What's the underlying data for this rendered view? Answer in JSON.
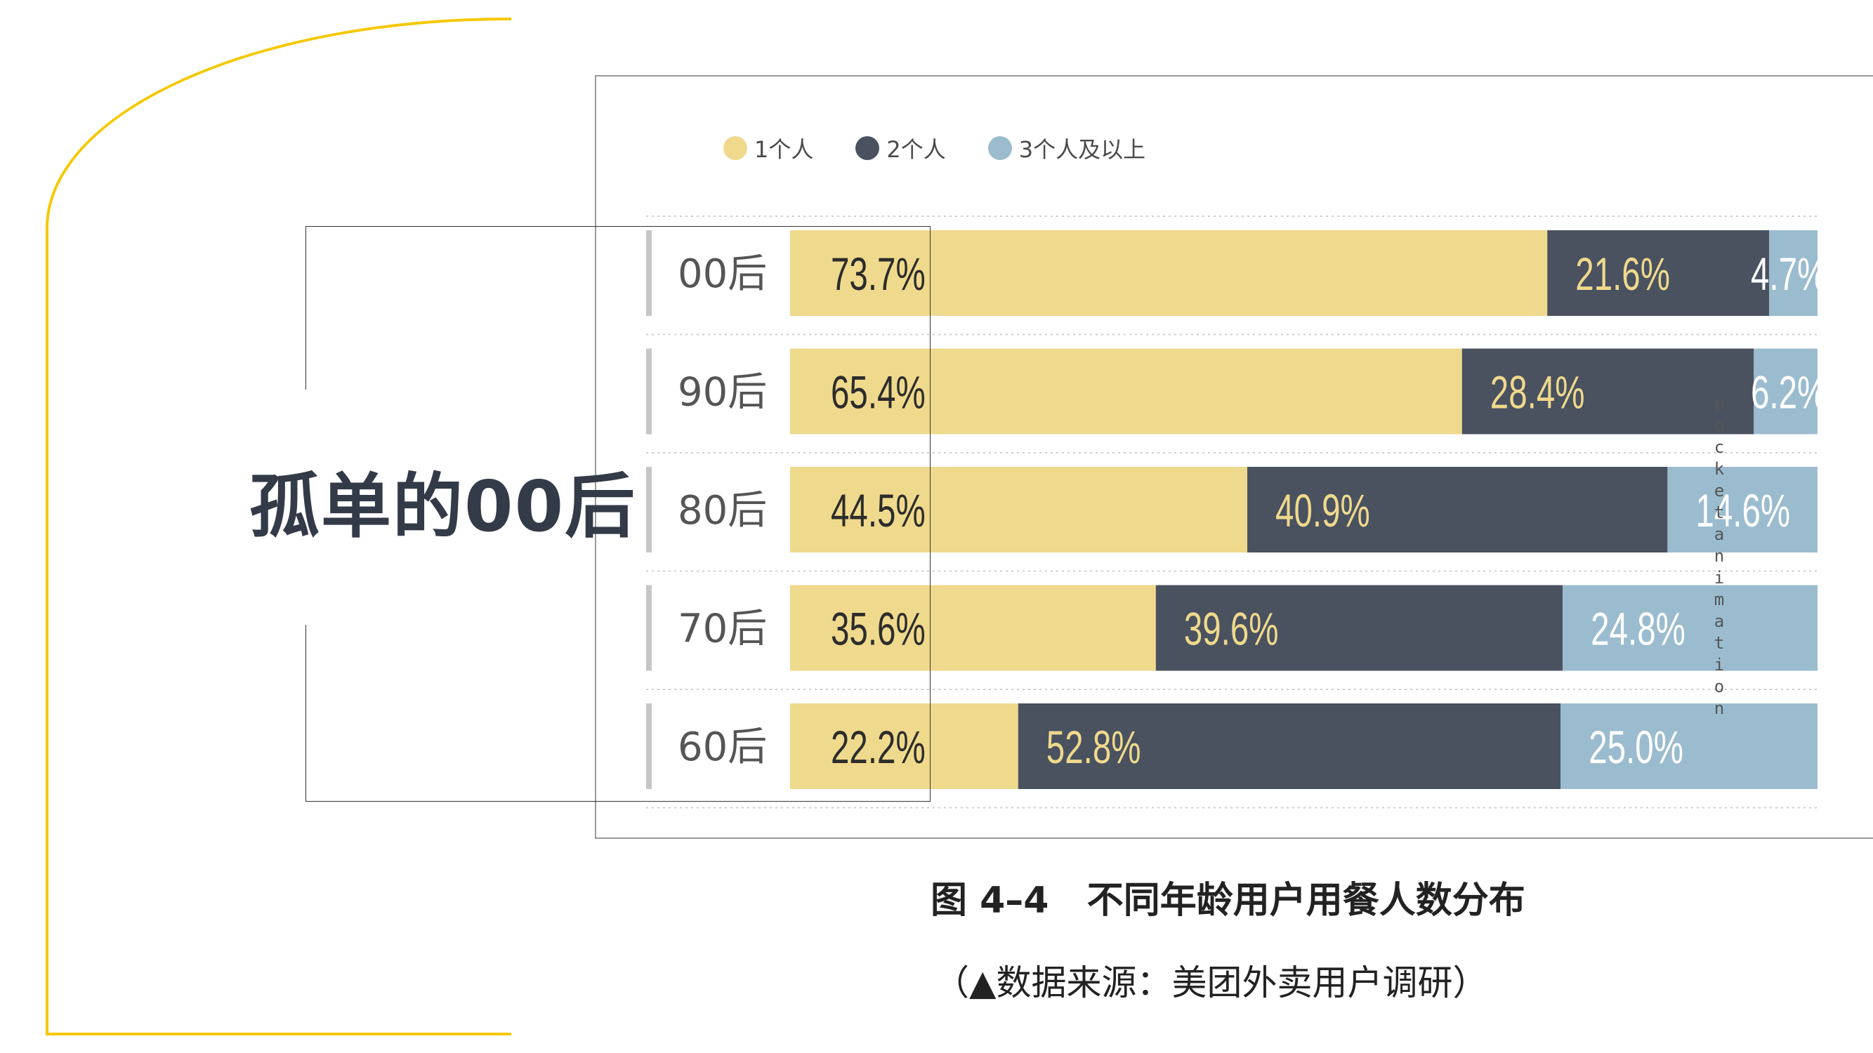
{
  "slide": {
    "title": "孤单的00后",
    "watermark": "pocketanimation"
  },
  "colors": {
    "accent_yellow": "#f5c800",
    "bar_1": "#efd98c",
    "bar_2": "#4a5260",
    "bar_3": "#9bbccf",
    "title_text": "#333a48"
  },
  "legend": [
    {
      "label": "1个人",
      "color": "#efd98c"
    },
    {
      "label": "2个人",
      "color": "#4a5260"
    },
    {
      "label": "3个人及以上",
      "color": "#9bbccf"
    }
  ],
  "caption": {
    "main": "图 4–4   不同年龄用户用餐人数分布",
    "source": "（▲数据来源：美团外卖用户调研）"
  },
  "chart_data": {
    "type": "bar",
    "orientation": "horizontal",
    "stacked": true,
    "categories": [
      "00后",
      "90后",
      "80后",
      "70后",
      "60后"
    ],
    "series": [
      {
        "name": "1个人",
        "values": [
          73.7,
          65.4,
          44.5,
          35.6,
          22.2
        ],
        "labels": [
          "73.7%",
          "65.4%",
          "44.5%",
          "35.6%",
          "22.2%"
        ]
      },
      {
        "name": "2个人",
        "values": [
          21.6,
          28.4,
          40.9,
          39.6,
          52.8
        ],
        "labels": [
          "21.6%",
          "28.4%",
          "40.9%",
          "39.6%",
          "52.8%"
        ]
      },
      {
        "name": "3个人及以上",
        "values": [
          4.7,
          6.2,
          14.6,
          24.8,
          25.0
        ],
        "labels": [
          "4.7%",
          "6.2%",
          "14.6%",
          "24.8%",
          "25.0%"
        ]
      }
    ],
    "unit": "%",
    "xlim": [
      0,
      100
    ],
    "legend_position": "top-left"
  }
}
